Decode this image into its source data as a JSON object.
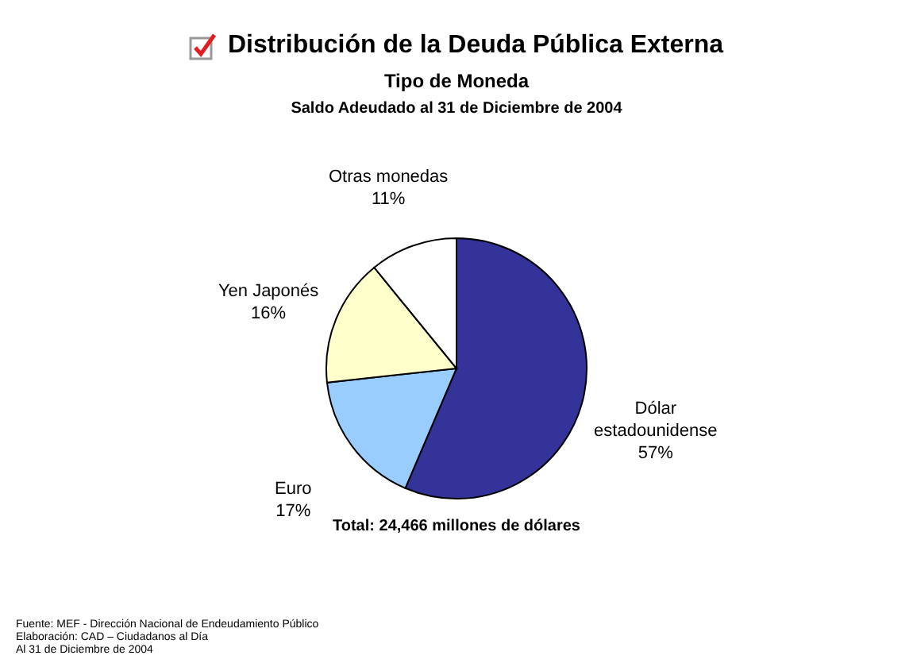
{
  "chart_data": {
    "type": "pie",
    "title": "Distribución de la Deuda Pública Externa",
    "subtitle": "Tipo de Moneda",
    "categories": [
      "Dólar estadounidense",
      "Euro",
      "Yen Japonés",
      "Otras monedas"
    ],
    "values": [
      57,
      17,
      16,
      11
    ],
    "value_labels": [
      "57%",
      "17%",
      "16%",
      "11%"
    ],
    "colors": [
      "#333399",
      "#99ccff",
      "#ffffcc",
      "#ffffff"
    ],
    "legend": false,
    "annotations": [
      "Saldo Adeudado al 31 de Diciembre de 2004",
      "Total: 24,466 millones de dólares",
      "Fuente: MEF -  Dirección Nacional de Endeudamiento Público",
      "Elaboración: CAD – Ciudadanos al Día",
      "Al 31 de Diciembre de 2004"
    ]
  }
}
